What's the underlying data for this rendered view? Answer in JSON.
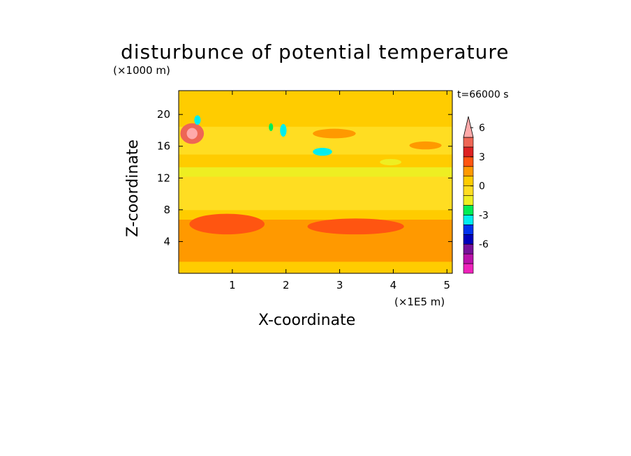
{
  "chart_data": {
    "type": "heatmap",
    "title": "disturbunce of potential temperature",
    "xlabel": "X-coordinate",
    "ylabel": "Z-coordinate",
    "x_unit": "(×1E5 m)",
    "y_unit": "(×1000 m)",
    "time_label": "t=66000 s",
    "xlim": [
      0,
      5.1
    ],
    "ylim": [
      0,
      23
    ],
    "xticks": [
      1,
      2,
      3,
      4,
      5
    ],
    "yticks": [
      4,
      8,
      12,
      16,
      20
    ],
    "colorbar": {
      "levels": [
        -9,
        -8,
        -7,
        -6,
        -5,
        -4,
        -3,
        -2,
        -1,
        0,
        1,
        2,
        3,
        4,
        5,
        6,
        7
      ],
      "colors": [
        "#ee22bb",
        "#bb11aa",
        "#771199",
        "#0000bb",
        "#0033ee",
        "#00eeee",
        "#00ee55",
        "#eeee22",
        "#ffdd22",
        "#ffcc00",
        "#ff9900",
        "#ff5511",
        "#dd2222",
        "#ee6655",
        "#ffaaaa"
      ],
      "tick_labels": [
        "6",
        "3",
        "0",
        "-3",
        "-6"
      ],
      "tick_values": [
        6,
        3,
        0,
        -3,
        -6
      ],
      "extend": "max"
    },
    "bands": [
      {
        "z0": 0,
        "z1": 1.5,
        "value": 0.5
      },
      {
        "z0": 1.5,
        "z1": 3.6,
        "value": 1.5
      },
      {
        "z0": 3.6,
        "z1": 6.8,
        "value": 1.5
      },
      {
        "z0": 6.8,
        "z1": 8.0,
        "value": 0.5
      },
      {
        "z0": 8.0,
        "z1": 11.0,
        "value": -0.5
      },
      {
        "z0": 11.0,
        "z1": 12.2,
        "value": -0.5
      },
      {
        "z0": 12.2,
        "z1": 13.4,
        "value": -1.5
      },
      {
        "z0": 13.4,
        "z1": 15.0,
        "value": 0.5
      },
      {
        "z0": 15.0,
        "z1": 18.5,
        "value": -0.5
      },
      {
        "z0": 18.5,
        "z1": 23.0,
        "value": 0.5
      }
    ],
    "blobs": [
      {
        "x": 0.25,
        "z": 17.6,
        "rx": 0.22,
        "rz": 1.3,
        "value": 4.5
      },
      {
        "x": 0.25,
        "z": 17.6,
        "rx": 0.1,
        "rz": 0.7,
        "value": 5.5
      },
      {
        "x": 0.35,
        "z": 19.3,
        "rx": 0.06,
        "rz": 0.6,
        "value": -3.5
      },
      {
        "x": 1.95,
        "z": 18.0,
        "rx": 0.06,
        "rz": 0.8,
        "value": -3.5
      },
      {
        "x": 1.72,
        "z": 18.4,
        "rx": 0.04,
        "rz": 0.5,
        "value": -2.5
      },
      {
        "x": 2.68,
        "z": 15.3,
        "rx": 0.18,
        "rz": 0.5,
        "value": -3.5
      },
      {
        "x": 3.95,
        "z": 14.0,
        "rx": 0.2,
        "rz": 0.4,
        "value": -1.5
      },
      {
        "x": 0.9,
        "z": 6.2,
        "rx": 0.7,
        "rz": 1.3,
        "value": 2.5
      },
      {
        "x": 3.3,
        "z": 5.9,
        "rx": 0.9,
        "rz": 1.0,
        "value": 2.5
      },
      {
        "x": 2.9,
        "z": 17.6,
        "rx": 0.4,
        "rz": 0.6,
        "value": 1.5
      },
      {
        "x": 4.6,
        "z": 16.1,
        "rx": 0.3,
        "rz": 0.5,
        "value": 1.5
      }
    ]
  }
}
